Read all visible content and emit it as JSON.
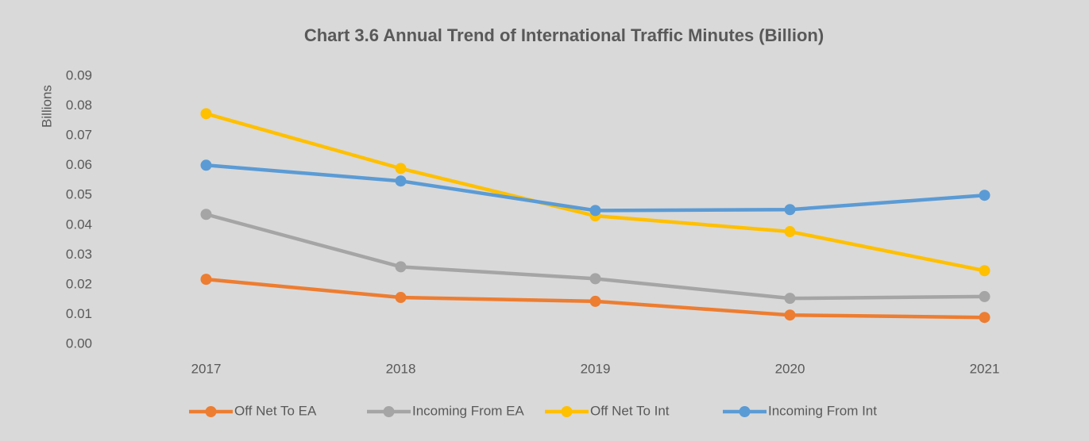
{
  "chart_data": {
    "type": "line",
    "title": "Chart 3.6 Annual Trend of International Traffic Minutes (Billion)",
    "ylabel": "Billions",
    "categories": [
      "2017",
      "2018",
      "2019",
      "2020",
      "2021"
    ],
    "series": [
      {
        "name": "Off Net To EA",
        "color": "#ed7d31",
        "values": [
          0.0218,
          0.0157,
          0.0144,
          0.0098,
          0.009
        ]
      },
      {
        "name": "Incoming From EA",
        "color": "#a5a5a5",
        "values": [
          0.0436,
          0.026,
          0.022,
          0.0154,
          0.016
        ]
      },
      {
        "name": "Off Net To Int",
        "color": "#ffc000",
        "values": [
          0.0774,
          0.059,
          0.0431,
          0.0378,
          0.0247
        ]
      },
      {
        "name": "Incoming From Int",
        "color": "#5b9bd5",
        "values": [
          0.0601,
          0.0548,
          0.0449,
          0.0452,
          0.05
        ]
      }
    ],
    "ylim": [
      0,
      0.09
    ],
    "yticks": [
      {
        "value": 0,
        "label": "0.00"
      },
      0.01,
      0.02,
      0.03,
      0.04,
      0.05,
      0.06,
      0.07,
      0.08,
      0.09
    ],
    "legend": "bottom"
  }
}
